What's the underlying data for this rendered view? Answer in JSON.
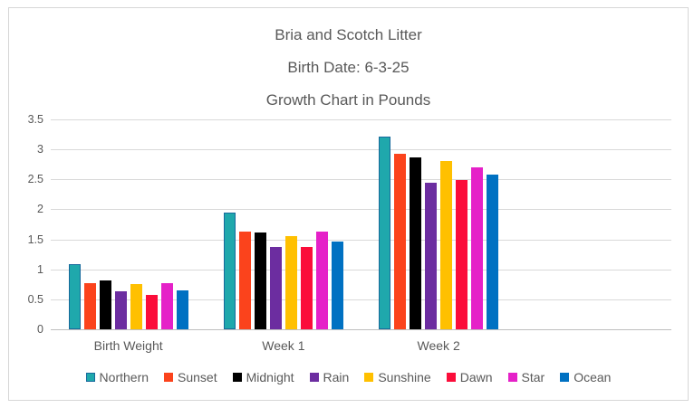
{
  "title": {
    "line1": "Bria and Scotch Litter",
    "line2": "Birth Date: 6-3-25",
    "line3": "Growth Chart in Pounds"
  },
  "chart_data": {
    "type": "bar",
    "title": "Bria and Scotch Litter — Birth Date: 6-3-25 — Growth Chart in Pounds",
    "xlabel": "",
    "ylabel": "",
    "categories": [
      "Birth Weight",
      "Week 1",
      "Week 2"
    ],
    "category_slots": 4,
    "series": [
      {
        "name": "Northern",
        "color": "#1fa8ac",
        "border_color": "#17699c",
        "values": [
          1.08,
          1.95,
          3.21
        ]
      },
      {
        "name": "Sunset",
        "color": "#fb431c",
        "values": [
          0.77,
          1.63,
          2.93
        ]
      },
      {
        "name": "Midnight",
        "color": "#000000",
        "values": [
          0.81,
          1.61,
          2.87
        ]
      },
      {
        "name": "Rain",
        "color": "#6c2da0",
        "values": [
          0.63,
          1.38,
          2.45
        ]
      },
      {
        "name": "Sunshine",
        "color": "#ffc000",
        "values": [
          0.76,
          1.55,
          2.81
        ]
      },
      {
        "name": "Dawn",
        "color": "#fb0d3a",
        "values": [
          0.57,
          1.38,
          2.49
        ]
      },
      {
        "name": "Star",
        "color": "#e521c8",
        "values": [
          0.77,
          1.63,
          2.7
        ]
      },
      {
        "name": "Ocean",
        "color": "#0071c2",
        "values": [
          0.65,
          1.47,
          2.58
        ]
      }
    ],
    "ylim": [
      0,
      3.5
    ],
    "ytick_step": 0.5,
    "ytick_labels": [
      "0",
      "0.5",
      "1",
      "1.5",
      "2",
      "2.5",
      "3",
      "3.5"
    ],
    "grid": true,
    "legend_position": "bottom",
    "colors": {
      "gridline": "#d9d9d9",
      "axis_line": "#bfbfbf",
      "text": "#595959",
      "frame_border": "#d6d6d6",
      "background": "#ffffff"
    }
  }
}
